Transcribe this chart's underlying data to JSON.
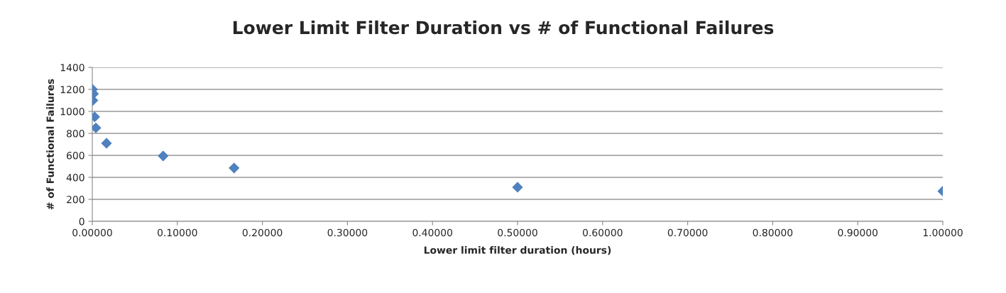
{
  "chart_data": {
    "type": "scatter",
    "title": "Lower Limit Filter Duration vs # of Functional Failures",
    "xlabel": "Lower limit filter duration (hours)",
    "ylabel": "# of Functional Failures",
    "series": [
      {
        "color": "#4f81bd",
        "x": [
          0.0003,
          0.0014,
          0.0007,
          0.0028,
          0.0042,
          0.0167,
          0.0833,
          0.1667,
          0.5,
          1.0
        ],
        "values": [
          1200,
          1160,
          1100,
          950,
          850,
          710,
          595,
          485,
          310,
          275
        ]
      }
    ],
    "xlim": [
      0,
      1.0
    ],
    "ylim": [
      0,
      1400
    ],
    "xticks": [
      {
        "value": 0,
        "label": "0.00000"
      },
      {
        "value": 0.1,
        "label": "0.10000"
      },
      {
        "value": 0.2,
        "label": "0.20000"
      },
      {
        "value": 0.3,
        "label": "0.30000"
      },
      {
        "value": 0.4,
        "label": "0.40000"
      },
      {
        "value": 0.5,
        "label": "0.50000"
      },
      {
        "value": 0.6,
        "label": "0.60000"
      },
      {
        "value": 0.7,
        "label": "0.70000"
      },
      {
        "value": 0.8,
        "label": "0.80000"
      },
      {
        "value": 0.9,
        "label": "0.90000"
      },
      {
        "value": 1.0,
        "label": "1.00000"
      }
    ],
    "yticks": [
      0,
      200,
      400,
      600,
      800,
      1000,
      1200,
      1400
    ],
    "grid": "y",
    "marker": "diamond",
    "legend": false
  }
}
